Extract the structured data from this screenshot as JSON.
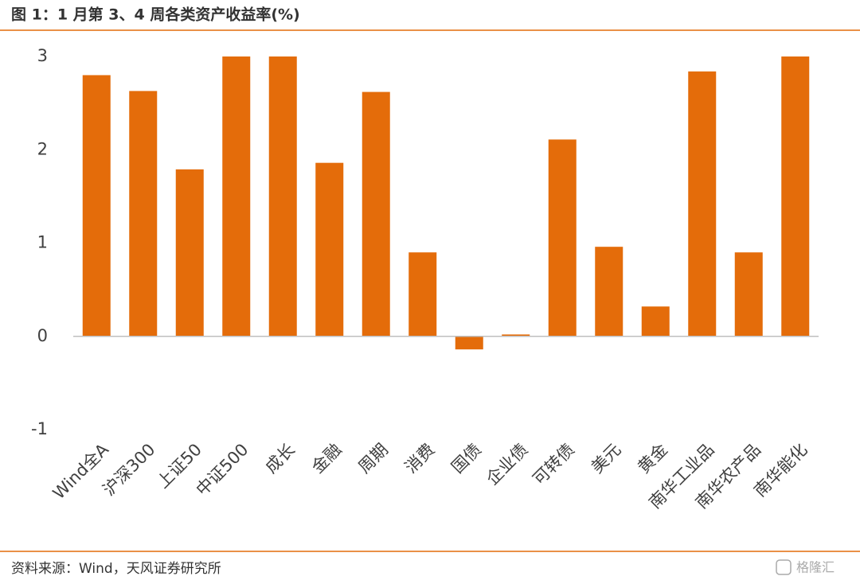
{
  "chart_data": {
    "type": "bar",
    "title": "图 1：1 月第 3、4 周各类资产收益率(%)",
    "categories": [
      "Wind全A",
      "沪深300",
      "上证50",
      "中证500",
      "成长",
      "金融",
      "周期",
      "消费",
      "国债",
      "企业债",
      "可转债",
      "美元",
      "黄金",
      "南华工业品",
      "南华农产品",
      "南华能化"
    ],
    "values": [
      2.8,
      2.63,
      1.79,
      3.0,
      3.0,
      1.86,
      2.62,
      0.9,
      -0.14,
      0.02,
      2.11,
      0.96,
      0.32,
      2.84,
      0.9,
      3.0
    ],
    "color": "#e46c0a",
    "ylim": [
      -1,
      3
    ],
    "yticks": [
      -1,
      0,
      1,
      2,
      3
    ],
    "grid": false,
    "source": "资料来源：Wind，天风证券研究所",
    "watermark": "格隆汇"
  }
}
